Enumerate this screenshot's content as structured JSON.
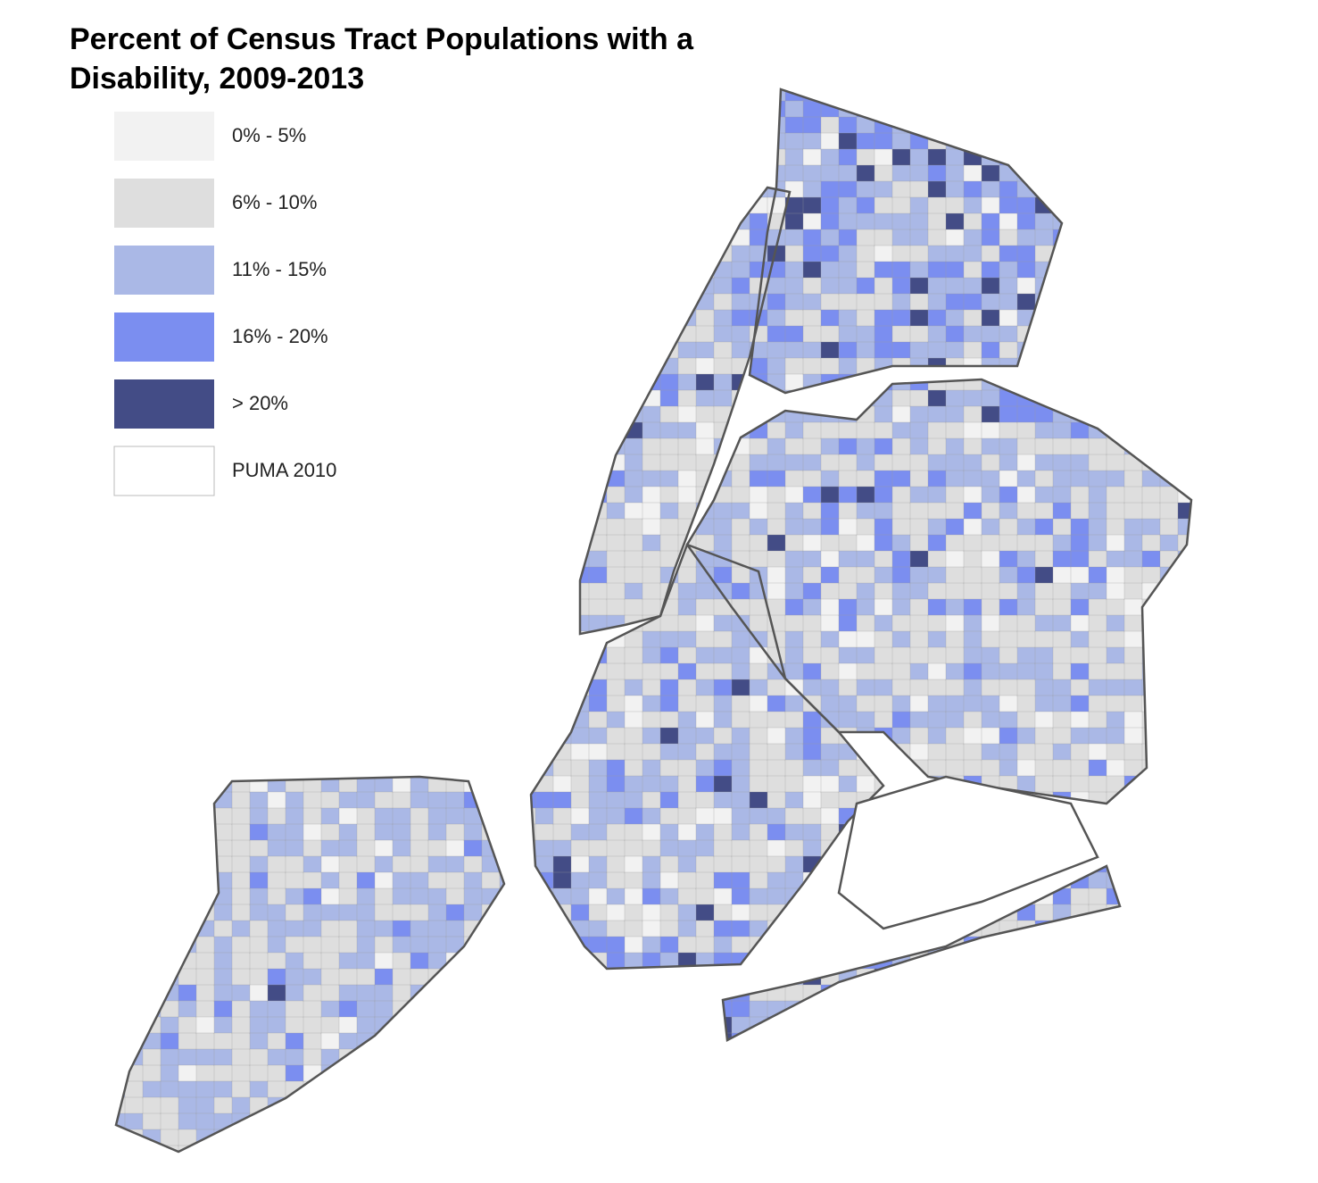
{
  "title": "Percent of Census Tract Populations with a Disability, 2009-2013",
  "legend": {
    "items": [
      {
        "label": "0% - 5%",
        "color": "#f2f2f2"
      },
      {
        "label": "6% - 10%",
        "color": "#dedede"
      },
      {
        "label": "11% - 15%",
        "color": "#aab8e6"
      },
      {
        "label": "16% - 20%",
        "color": "#7b8ef0"
      },
      {
        "label": "> 20%",
        "color": "#434c86"
      },
      {
        "label": "PUMA 2010",
        "color": "#ffffff"
      }
    ]
  }
}
